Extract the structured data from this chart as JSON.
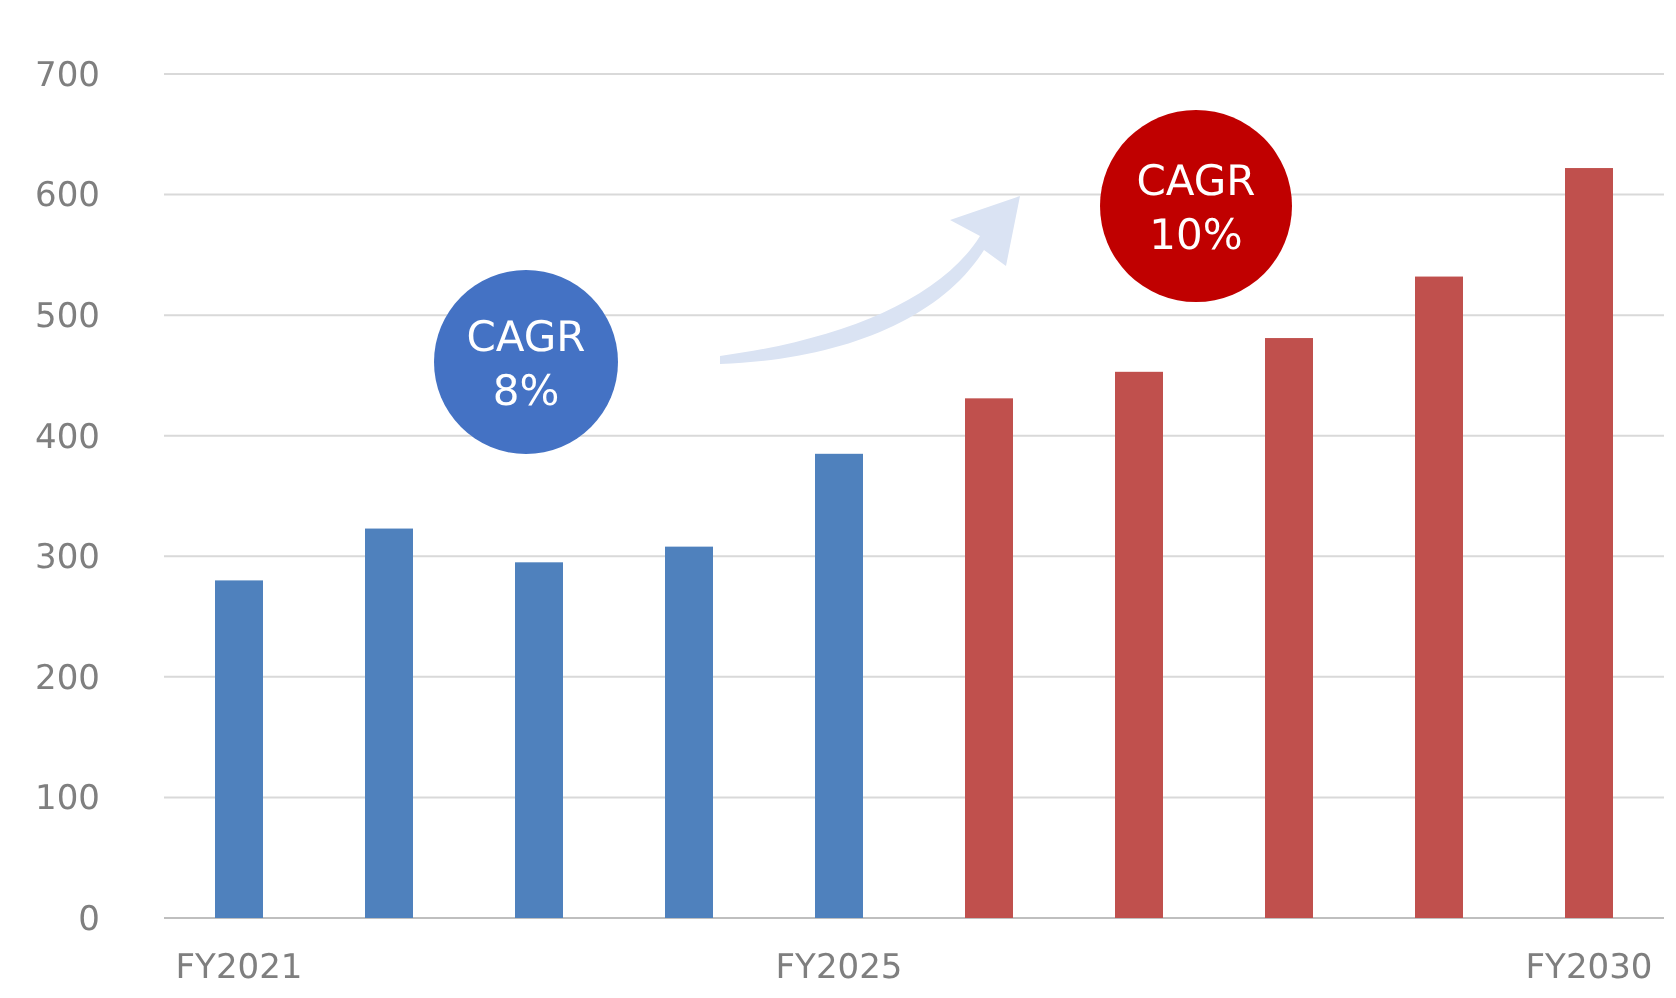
{
  "chart_data": {
    "type": "bar",
    "categories": [
      "FY2021",
      null,
      null,
      null,
      "FY2025",
      null,
      null,
      null,
      null,
      "FY2030"
    ],
    "values": [
      280,
      323,
      295,
      308,
      385,
      431,
      453,
      481,
      532,
      622
    ],
    "colors": [
      "#4f81bd",
      "#4f81bd",
      "#4f81bd",
      "#4f81bd",
      "#4f81bd",
      "#c0504d",
      "#c0504d",
      "#c0504d",
      "#c0504d",
      "#c0504d"
    ],
    "ylim": [
      0,
      700
    ],
    "yticks": [
      0,
      100,
      200,
      300,
      400,
      500,
      600,
      700
    ],
    "grid": "y",
    "annotations": [
      "CAGR\n8%",
      "CAGR\n10%"
    ]
  }
}
